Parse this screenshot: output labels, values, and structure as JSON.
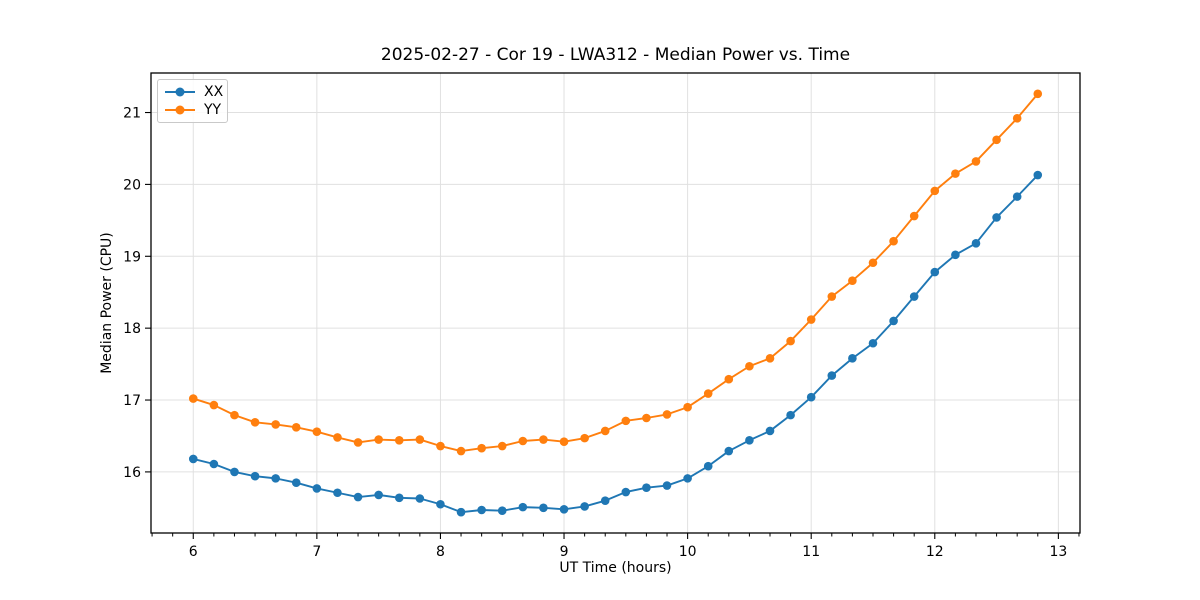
{
  "window": {
    "background": "#ffffff"
  },
  "chart_data": {
    "type": "line",
    "title": "2025-02-27 - Cor 19 - LWA312 - Median Power vs. Time",
    "xlabel": "UT Time (hours)",
    "ylabel": "Median Power (CPU)",
    "xlim": [
      5.658,
      13.175
    ],
    "ylim": [
      15.15,
      21.55
    ],
    "x_ticks": [
      6,
      7,
      8,
      9,
      10,
      11,
      12,
      13
    ],
    "x_tick_labels": [
      "6",
      "7",
      "8",
      "9",
      "10",
      "11",
      "12",
      "13"
    ],
    "x_minor_tick_step": 0.166667,
    "y_ticks": [
      16,
      17,
      18,
      19,
      20,
      21
    ],
    "y_tick_labels": [
      "16",
      "17",
      "18",
      "19",
      "20",
      "21"
    ],
    "grid": true,
    "legend": {
      "position": "upper-left",
      "entries": [
        "XX",
        "YY"
      ]
    },
    "x": [
      6.0,
      6.1667,
      6.3333,
      6.5,
      6.6667,
      6.8333,
      7.0,
      7.1667,
      7.3333,
      7.5,
      7.6667,
      7.8333,
      8.0,
      8.1667,
      8.3333,
      8.5,
      8.6667,
      8.8333,
      9.0,
      9.1667,
      9.3333,
      9.5,
      9.6667,
      9.8333,
      10.0,
      10.1667,
      10.3333,
      10.5,
      10.6667,
      10.8333,
      11.0,
      11.1667,
      11.3333,
      11.5,
      11.6667,
      11.8333,
      12.0,
      12.1667,
      12.3333,
      12.5,
      12.6667,
      12.8333
    ],
    "series": [
      {
        "name": "XX",
        "color": "#1f77b4",
        "values": [
          16.18,
          16.11,
          16.0,
          15.94,
          15.91,
          15.85,
          15.77,
          15.71,
          15.65,
          15.68,
          15.64,
          15.63,
          15.55,
          15.44,
          15.47,
          15.46,
          15.51,
          15.5,
          15.48,
          15.52,
          15.6,
          15.72,
          15.78,
          15.81,
          15.91,
          16.08,
          16.29,
          16.44,
          16.57,
          16.79,
          17.04,
          17.34,
          17.58,
          17.79,
          18.1,
          18.44,
          18.78,
          19.02,
          19.18,
          19.54,
          19.83,
          20.13
        ]
      },
      {
        "name": "YY",
        "color": "#ff7f0e",
        "values": [
          17.02,
          16.93,
          16.79,
          16.69,
          16.66,
          16.62,
          16.56,
          16.48,
          16.41,
          16.45,
          16.44,
          16.45,
          16.36,
          16.29,
          16.33,
          16.36,
          16.43,
          16.45,
          16.42,
          16.47,
          16.57,
          16.71,
          16.75,
          16.8,
          16.9,
          17.09,
          17.29,
          17.47,
          17.58,
          17.82,
          18.12,
          18.44,
          18.66,
          18.91,
          19.21,
          19.56,
          19.91,
          20.15,
          20.32,
          20.62,
          20.92,
          21.26
        ]
      }
    ],
    "styles": {
      "grid_color": "#e0e0e0",
      "spine_color": "#000000",
      "tick_color": "#000000",
      "text_color": "#000000",
      "line_width": 1.9,
      "marker_radius": 4.3
    }
  }
}
